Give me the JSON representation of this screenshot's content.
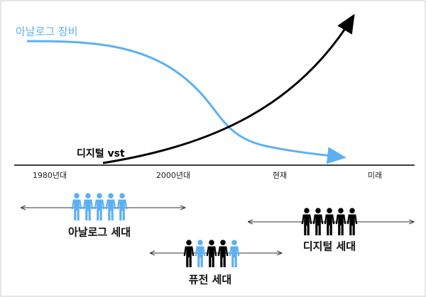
{
  "curves": {
    "analog_label": "아날로그 장비",
    "digital_label": "디지털 vst"
  },
  "timeline": {
    "labels": [
      "1980년대",
      "2000년대",
      "현재",
      "미래"
    ]
  },
  "generations": [
    {
      "label": "아날로그 세대"
    },
    {
      "label": "퓨전 세대"
    },
    {
      "label": "디지털 세대"
    }
  ]
}
